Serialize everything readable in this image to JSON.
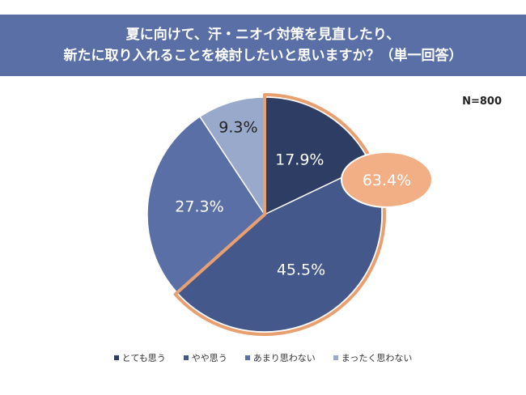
{
  "header": {
    "title_line1": "夏に向けて、汗・ニオイ対策を見直したり、",
    "title_line2": "新たに取り入れることを検討したいと思いますか？（単一回答）"
  },
  "sample_size": "N=800",
  "callout": {
    "value": "63.4%",
    "color": "#f2ae84",
    "border": "#e8a070"
  },
  "chart_data": {
    "type": "pie",
    "title": "夏に向けて、汗・ニオイ対策を見直したり、新たに取り入れることを検討したいと思いますか？（単一回答）",
    "start_angle_deg": 0,
    "direction": "clockwise",
    "slices": [
      {
        "label": "とても思う",
        "value": 17.9,
        "display": "17.9%",
        "color": "#2e3d63"
      },
      {
        "label": "やや思う",
        "value": 45.5,
        "display": "45.5%",
        "color": "#44588c"
      },
      {
        "label": "あまり思わない",
        "value": 27.3,
        "display": "27.3%",
        "color": "#5a6fa6"
      },
      {
        "label": "まったく思わない",
        "value": 9.3,
        "display": "9.3%",
        "color": "#98a9cc"
      }
    ],
    "highlight": {
      "slices": [
        "とても思う",
        "やや思う"
      ],
      "total": "63.4%"
    },
    "legend_position": "bottom"
  }
}
